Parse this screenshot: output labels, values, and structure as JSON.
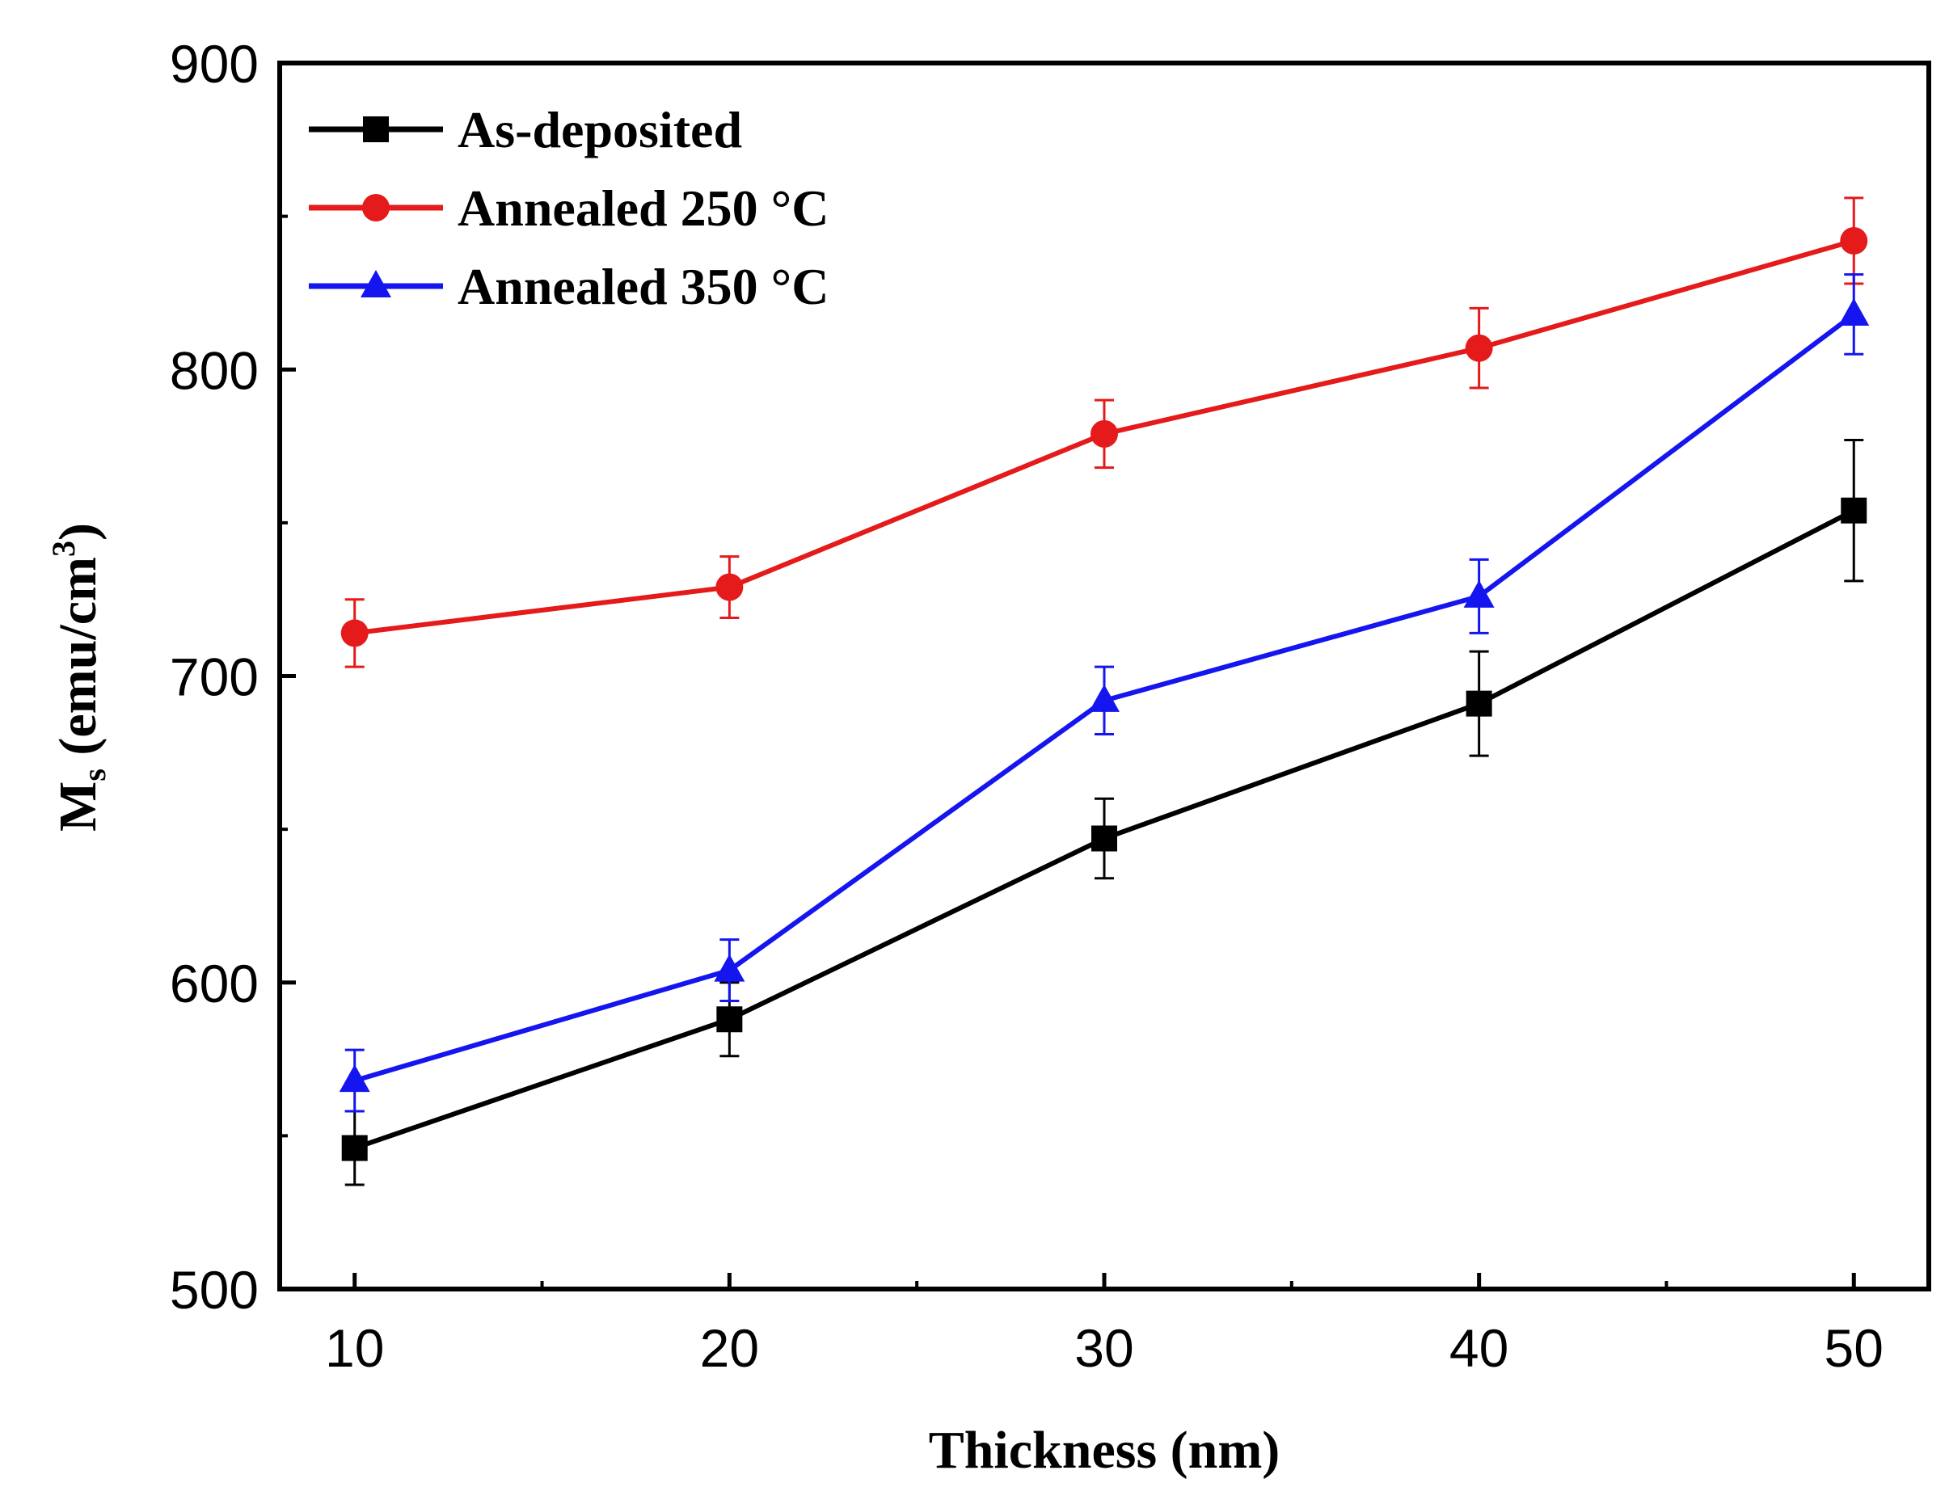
{
  "chart_data": {
    "type": "line",
    "xlabel": "Thickness (nm)",
    "ylabel": {
      "main": "M",
      "sub": "s",
      "unit": " (emu/cm",
      "sup": "3",
      "close": ")"
    },
    "x": [
      10,
      20,
      30,
      40,
      50
    ],
    "xlim": [
      8,
      52
    ],
    "ylim": [
      500,
      900
    ],
    "xticks": [
      "10",
      "20",
      "30",
      "40",
      "50"
    ],
    "yticks": [
      "500",
      "600",
      "700",
      "800",
      "900"
    ],
    "legend_position": "top-left",
    "series": [
      {
        "name": "As-deposited",
        "color": "#000000",
        "marker": "square",
        "values": [
          546,
          588,
          647,
          691,
          754
        ],
        "errors": [
          12,
          12,
          13,
          17,
          23
        ]
      },
      {
        "name": "Annealed 250 °C",
        "color": "#e51a1a",
        "marker": "circle",
        "values": [
          714,
          729,
          779,
          807,
          842
        ],
        "errors": [
          11,
          10,
          11,
          13,
          14
        ]
      },
      {
        "name": "Annealed 350 °C",
        "color": "#1515f0",
        "marker": "triangle",
        "values": [
          568,
          604,
          692,
          726,
          818
        ],
        "errors": [
          10,
          10,
          11,
          12,
          13
        ]
      }
    ]
  }
}
